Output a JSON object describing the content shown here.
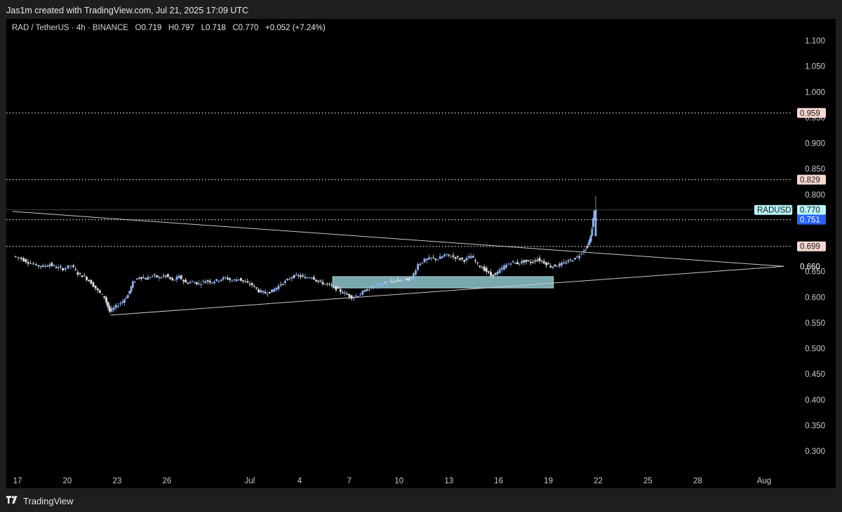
{
  "caption": "Jas1m created with TradingView.com, Jul 21, 2025 17:09 UTC",
  "legend": {
    "symbol": "RAD / TetherUS · 4h · BINANCE",
    "o_label": "O",
    "o_value": "0.719",
    "h_label": "H",
    "h_value": "0.797",
    "l_label": "L",
    "l_value": "0.718",
    "c_label": "C",
    "c_value": "0.770",
    "change": "+0.052 (+7.24%)"
  },
  "footer": {
    "brand": "TradingView"
  },
  "colors": {
    "background": "#000000",
    "frame": "#1e1e1e",
    "candle_up": "#8fb3f0",
    "candle_down": "#e0e0e0",
    "level_line": "#f5d6c8",
    "trendline": "#c8c8c8",
    "zone_fill": "#8ec5cc",
    "price_tag": "#b7f3f8",
    "countdown_tag": "#2962ff",
    "level_tag": "#f8d7cf"
  },
  "chart_data": {
    "type": "candlestick",
    "symbol": "RADUSDT",
    "interval": "4h",
    "ylim": [
      0.28,
      1.13
    ],
    "y_ticks": [
      "1.100",
      "1.050",
      "1.000",
      "0.950",
      "0.900",
      "0.850",
      "0.800",
      "0.750",
      "0.700",
      "0.650",
      "0.600",
      "0.550",
      "0.500",
      "0.450",
      "0.400",
      "0.350",
      "0.300"
    ],
    "x_ticks": [
      {
        "label": "17",
        "day": 17
      },
      {
        "label": "20",
        "day": 20
      },
      {
        "label": "23",
        "day": 23
      },
      {
        "label": "26",
        "day": 26
      },
      {
        "label": "Jul",
        "day": 31
      },
      {
        "label": "4",
        "day": 34
      },
      {
        "label": "7",
        "day": 37
      },
      {
        "label": "10",
        "day": 40
      },
      {
        "label": "13",
        "day": 43
      },
      {
        "label": "16",
        "day": 46
      },
      {
        "label": "19",
        "day": 49
      },
      {
        "label": "22",
        "day": 52
      },
      {
        "label": "25",
        "day": 55
      },
      {
        "label": "28",
        "day": 58
      },
      {
        "label": "Aug",
        "day": 62
      }
    ],
    "x_range_days": [
      16.7,
      63.2
    ],
    "close_path": [
      [
        16.8,
        0.68
      ],
      [
        17.3,
        0.675
      ],
      [
        17.7,
        0.668
      ],
      [
        18.2,
        0.662
      ],
      [
        18.6,
        0.66
      ],
      [
        19.0,
        0.664
      ],
      [
        19.4,
        0.658
      ],
      [
        19.8,
        0.655
      ],
      [
        20.3,
        0.662
      ],
      [
        20.7,
        0.646
      ],
      [
        21.1,
        0.64
      ],
      [
        21.5,
        0.628
      ],
      [
        21.9,
        0.612
      ],
      [
        22.3,
        0.6
      ],
      [
        22.6,
        0.572
      ],
      [
        23.0,
        0.582
      ],
      [
        23.4,
        0.592
      ],
      [
        23.7,
        0.604
      ],
      [
        24.0,
        0.628
      ],
      [
        24.4,
        0.64
      ],
      [
        24.8,
        0.636
      ],
      [
        25.2,
        0.642
      ],
      [
        25.6,
        0.638
      ],
      [
        26.0,
        0.642
      ],
      [
        26.4,
        0.632
      ],
      [
        26.8,
        0.64
      ],
      [
        27.2,
        0.628
      ],
      [
        27.6,
        0.63
      ],
      [
        28.0,
        0.626
      ],
      [
        28.4,
        0.632
      ],
      [
        28.8,
        0.63
      ],
      [
        29.2,
        0.634
      ],
      [
        29.6,
        0.638
      ],
      [
        30.0,
        0.632
      ],
      [
        30.4,
        0.636
      ],
      [
        30.8,
        0.628
      ],
      [
        31.2,
        0.624
      ],
      [
        31.6,
        0.612
      ],
      [
        32.0,
        0.608
      ],
      [
        32.4,
        0.612
      ],
      [
        32.8,
        0.622
      ],
      [
        33.2,
        0.63
      ],
      [
        33.6,
        0.64
      ],
      [
        34.0,
        0.642
      ],
      [
        34.4,
        0.638
      ],
      [
        34.8,
        0.64
      ],
      [
        35.2,
        0.63
      ],
      [
        35.6,
        0.626
      ],
      [
        36.0,
        0.622
      ],
      [
        36.4,
        0.614
      ],
      [
        36.8,
        0.607
      ],
      [
        37.2,
        0.6
      ],
      [
        37.6,
        0.604
      ],
      [
        38.0,
        0.612
      ],
      [
        38.4,
        0.62
      ],
      [
        38.8,
        0.624
      ],
      [
        39.2,
        0.628
      ],
      [
        39.6,
        0.63
      ],
      [
        40.0,
        0.632
      ],
      [
        40.4,
        0.634
      ],
      [
        40.8,
        0.636
      ],
      [
        41.2,
        0.664
      ],
      [
        41.6,
        0.672
      ],
      [
        42.0,
        0.676
      ],
      [
        42.4,
        0.674
      ],
      [
        42.8,
        0.682
      ],
      [
        43.2,
        0.68
      ],
      [
        43.6,
        0.676
      ],
      [
        44.0,
        0.672
      ],
      [
        44.4,
        0.68
      ],
      [
        44.8,
        0.664
      ],
      [
        45.2,
        0.654
      ],
      [
        45.6,
        0.642
      ],
      [
        46.0,
        0.648
      ],
      [
        46.4,
        0.66
      ],
      [
        46.8,
        0.668
      ],
      [
        47.2,
        0.666
      ],
      [
        47.6,
        0.67
      ],
      [
        48.0,
        0.668
      ],
      [
        48.4,
        0.674
      ],
      [
        48.8,
        0.668
      ],
      [
        49.2,
        0.66
      ],
      [
        49.6,
        0.662
      ],
      [
        50.0,
        0.666
      ],
      [
        50.4,
        0.672
      ],
      [
        50.8,
        0.678
      ],
      [
        51.2,
        0.692
      ],
      [
        51.4,
        0.7
      ],
      [
        51.6,
        0.718
      ],
      [
        51.8,
        0.77
      ]
    ],
    "drawings": {
      "horizontal_levels": [
        0.959,
        0.829,
        0.751,
        0.699
      ],
      "descending_trendline": [
        [
          16.7,
          0.767
        ],
        [
          63.2,
          0.66
        ]
      ],
      "ascending_trendline": [
        [
          22.6,
          0.565
        ],
        [
          63.2,
          0.66
        ]
      ],
      "zone": {
        "x_from": 36.0,
        "x_to": 49.3,
        "y_from": 0.618,
        "y_to": 0.64
      }
    },
    "price_labels": [
      {
        "text": "0.959",
        "kind": "level"
      },
      {
        "text": "0.829",
        "kind": "level"
      },
      {
        "text": "RADUSDT",
        "kind": "symbol"
      },
      {
        "text": "0.770",
        "kind": "last"
      },
      {
        "text": "0.751",
        "kind": "countdown"
      },
      {
        "text": "0.699",
        "kind": "level"
      },
      {
        "text": "0.660",
        "kind": "plain"
      }
    ]
  }
}
